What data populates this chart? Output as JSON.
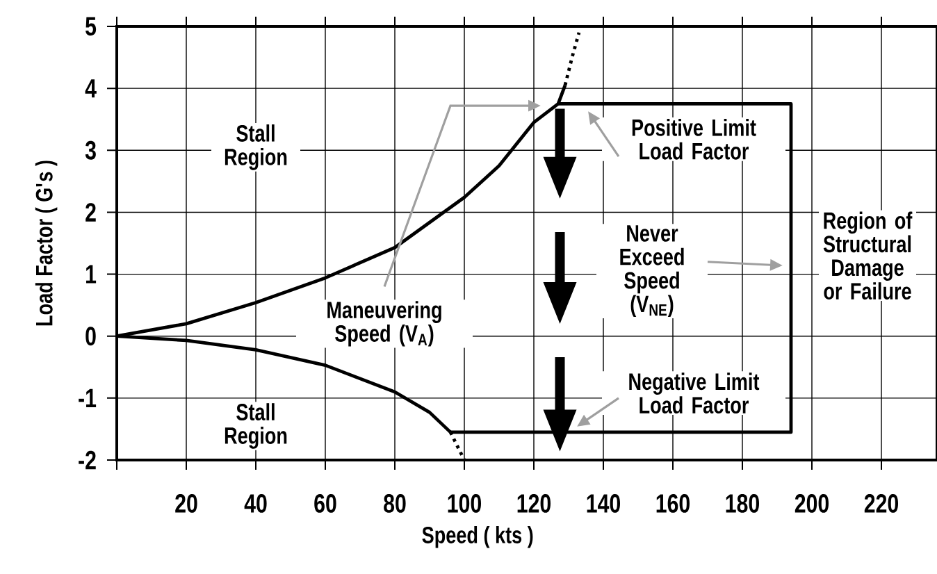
{
  "chart_data": {
    "type": "line",
    "xlabel": "Speed ( kts )",
    "ylabel": "Load Factor ( G's )",
    "xlim": [
      0,
      236
    ],
    "ylim": [
      -2,
      5
    ],
    "xticks": [
      {
        "value": 0,
        "label": null
      },
      20,
      40,
      60,
      80,
      100,
      120,
      140,
      160,
      180,
      200,
      220
    ],
    "yticks": [
      -2,
      -1,
      0,
      1,
      2,
      3,
      4,
      5
    ],
    "grid": true,
    "series": [
      {
        "color": "#000000",
        "line_style": "solid",
        "x": [
          0,
          20,
          40,
          60,
          80,
          100,
          110,
          120,
          127,
          129
        ],
        "values": [
          0,
          0.2,
          0.54,
          0.94,
          1.43,
          2.24,
          2.75,
          3.45,
          3.75,
          4.05
        ]
      },
      {
        "color": "#000000",
        "line_style": "dotted",
        "x": [
          129,
          131,
          133
        ],
        "values": [
          4.05,
          4.5,
          4.9
        ]
      },
      {
        "color": "#000000",
        "line_style": "solid",
        "x": [
          0,
          20,
          40,
          60,
          80,
          90,
          96
        ],
        "values": [
          0,
          -0.07,
          -0.22,
          -0.47,
          -0.9,
          -1.23,
          -1.55
        ]
      },
      {
        "color": "#000000",
        "line_style": "dotted",
        "x": [
          96,
          100
        ],
        "values": [
          -1.55,
          -2
        ]
      },
      {
        "color": "#000000",
        "line_style": "solid",
        "x": [
          127,
          194,
          194,
          96
        ],
        "values": [
          3.75,
          3.75,
          -1.55,
          -1.55
        ]
      }
    ],
    "annotations": [
      "Stall Region",
      "Maneuvering Speed (V$_{A}$)",
      "Positive Limit Load Factor",
      "Never Exceed Speed (V$_{NE}$)",
      "Region of Structural Damage or Failure",
      "Stall Region",
      "Negative Limit Load Factor"
    ]
  }
}
